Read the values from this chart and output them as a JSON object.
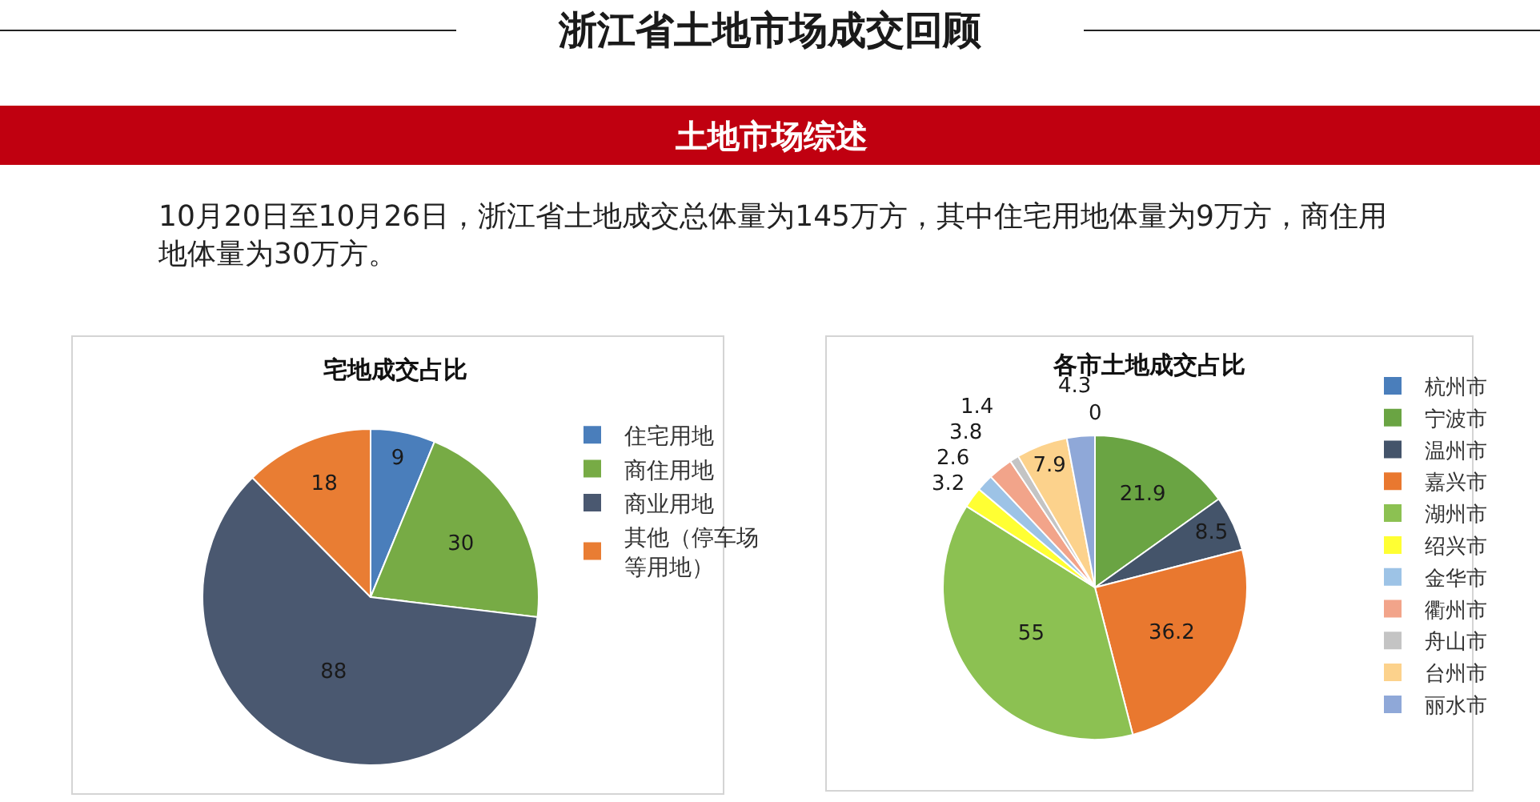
{
  "chart_data": [
    {
      "type": "other",
      "title": "浙江省土地市场成交回顾",
      "subtitle": "土地市场综述",
      "annotations": [
        "10月20日至10月26日，浙江省土地成交总体量为145万方，其中住宅用地体量为9万方，商住用地体量为30万方。"
      ]
    },
    {
      "type": "pie",
      "title": "宅地成交占比",
      "categories": [
        "住宅用地",
        "商住用地",
        "商业用地",
        "其他（停车场等用地）"
      ],
      "values": [
        9,
        30,
        88,
        18
      ],
      "colors": [
        "#4a7ebb",
        "#77ab45",
        "#4a5870",
        "#e97d33"
      ],
      "data_labels": true,
      "legend": "right"
    },
    {
      "type": "pie",
      "title": "各市土地成交占比",
      "categories": [
        "杭州市",
        "宁波市",
        "温州市",
        "嘉兴市",
        "湖州市",
        "绍兴市",
        "金华市",
        "衢州市",
        "舟山市",
        "台州市",
        "丽水市"
      ],
      "values": [
        0,
        21.9,
        8.5,
        36.2,
        55,
        3.2,
        2.6,
        3.8,
        1.4,
        7.9,
        4.3
      ],
      "value_labels": [
        "0",
        "21.9",
        "8.5",
        "36.2",
        "55",
        "3.2",
        "2.6",
        "3.8",
        "1.4",
        "7.9",
        "4.3"
      ],
      "colors": [
        "#4a7ebb",
        "#6aa443",
        "#44546a",
        "#e9782f",
        "#8cc152",
        "#ffff33",
        "#9dc3e6",
        "#f2a48a",
        "#c4c4c4",
        "#fcd28c",
        "#8fa8d8"
      ],
      "legend": "right"
    }
  ]
}
